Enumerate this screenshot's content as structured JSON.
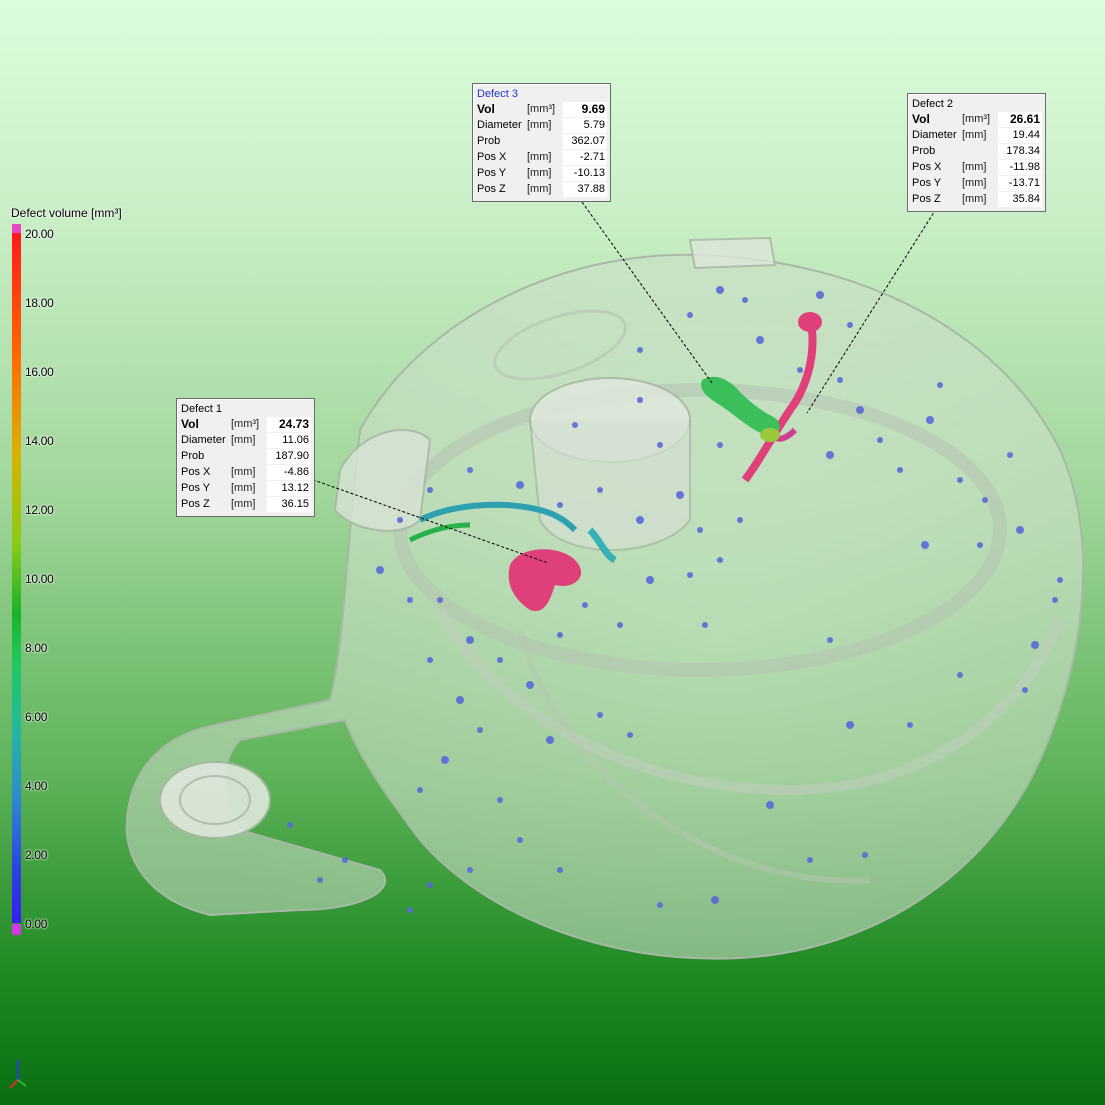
{
  "legend": {
    "title": "Defect volume [mm³]",
    "ticks": [
      "20.00",
      "18.00",
      "16.00",
      "14.00",
      "12.00",
      "10.00",
      "8.00",
      "6.00",
      "4.00",
      "2.00",
      "0.00"
    ],
    "colors": {
      "top_cap": "#e447c4",
      "bottom_cap": "#d53ae8"
    }
  },
  "callouts": [
    {
      "title": "Defect 1",
      "rows": [
        {
          "label": "Vol",
          "unit": "[mm³]",
          "value": "24.73"
        },
        {
          "label": "Diameter",
          "unit": "[mm]",
          "value": "11.06"
        },
        {
          "label": "Prob",
          "unit": "",
          "value": "187.90"
        },
        {
          "label": "Pos X",
          "unit": "[mm]",
          "value": "-4.86"
        },
        {
          "label": "Pos Y",
          "unit": "[mm]",
          "value": "13.12"
        },
        {
          "label": "Pos Z",
          "unit": "[mm]",
          "value": "36.15"
        }
      ]
    },
    {
      "title": "Defect 2",
      "rows": [
        {
          "label": "Vol",
          "unit": "[mm³]",
          "value": "26.61"
        },
        {
          "label": "Diameter",
          "unit": "[mm]",
          "value": "19.44"
        },
        {
          "label": "Prob",
          "unit": "",
          "value": "178.34"
        },
        {
          "label": "Pos X",
          "unit": "[mm]",
          "value": "-11.98"
        },
        {
          "label": "Pos Y",
          "unit": "[mm]",
          "value": "-13.71"
        },
        {
          "label": "Pos Z",
          "unit": "[mm]",
          "value": "35.84"
        }
      ]
    },
    {
      "title": "Defect 3",
      "rows": [
        {
          "label": "Vol",
          "unit": "[mm³]",
          "value": "9.69"
        },
        {
          "label": "Diameter",
          "unit": "[mm]",
          "value": "5.79"
        },
        {
          "label": "Prob",
          "unit": "",
          "value": "362.07"
        },
        {
          "label": "Pos X",
          "unit": "[mm]",
          "value": "-2.71"
        },
        {
          "label": "Pos Y",
          "unit": "[mm]",
          "value": "-10.13"
        },
        {
          "label": "Pos Z",
          "unit": "[mm]",
          "value": "37.88"
        }
      ]
    }
  ],
  "colors": {
    "background_top": "#dcfddc",
    "background_bottom": "#0a6f12",
    "part_body": "#d9e6d6",
    "defect_large": "#e0407a",
    "defect_small": "#5a6ad8",
    "defect_mid": "#3aa8b0"
  },
  "icons": {
    "axis_indicator": "axes-triad-icon"
  }
}
